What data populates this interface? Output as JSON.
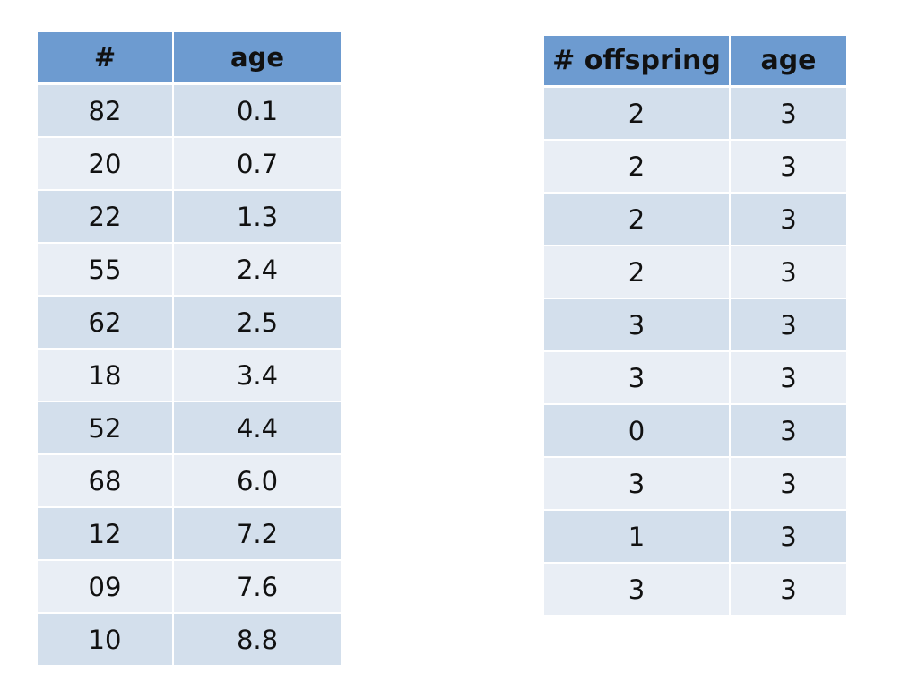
{
  "left_table": {
    "headers": [
      "#",
      "age"
    ],
    "rows": [
      [
        "82",
        "0.1"
      ],
      [
        "20",
        "0.7"
      ],
      [
        "22",
        "1.3"
      ],
      [
        "55",
        "2.4"
      ],
      [
        "62",
        "2.5"
      ],
      [
        "18",
        "3.4"
      ],
      [
        "52",
        "4.4"
      ],
      [
        "68",
        "6.0"
      ],
      [
        "12",
        "7.2"
      ],
      [
        "09",
        "7.6"
      ],
      [
        "10",
        "8.8"
      ]
    ]
  },
  "right_table": {
    "headers": [
      "# offspring",
      "age"
    ],
    "rows": [
      [
        "2",
        "3"
      ],
      [
        "2",
        "3"
      ],
      [
        "2",
        "3"
      ],
      [
        "2",
        "3"
      ],
      [
        "3",
        "3"
      ],
      [
        "3",
        "3"
      ],
      [
        "0",
        "3"
      ],
      [
        "3",
        "3"
      ],
      [
        "1",
        "3"
      ],
      [
        "3",
        "3"
      ]
    ]
  },
  "colors": {
    "header": "#6d9bd0",
    "row_odd": "#d3dfec",
    "row_even": "#e9eef5"
  }
}
